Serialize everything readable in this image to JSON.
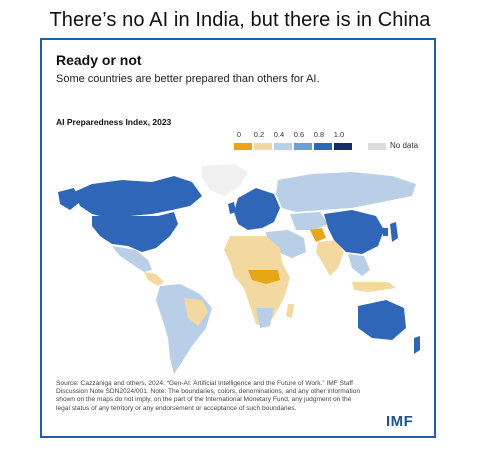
{
  "headline": "There’s no AI in India, but there is in China",
  "card": {
    "title": "Ready or not",
    "subtitle": "Some countries are better prepared than others for AI.",
    "chart_title": "AI Preparedness Index, 2023",
    "source": "Source: Cazzaniga and others, 2024. “Gen-AI: Artificial Intelligence and the Future of Work.” IMF Staff Discussion Note SDN2024/001. Note: The boundaries, colors, denominations, and any other information shown on the maps do not imply, on the part of the International Monetary Fund, any judgment on the legal status of any territory or any endorsement or acceptance of such boundaries.",
    "logo": "IMF"
  },
  "legend": {
    "ticks": [
      "0",
      "0.2",
      "0.4",
      "0.6",
      "0.8",
      "1.0"
    ],
    "colors": [
      "#e6a615",
      "#f3d9a0",
      "#b9cfe7",
      "#6f9fd6",
      "#2f66b8",
      "#152e6b"
    ],
    "no_data_label": "No data",
    "no_data_color": "#dcdcdc"
  },
  "colors": {
    "border": "#1f5fa8",
    "logo": "#1f4f92",
    "greenland": "#f0f0f0"
  },
  "chart_data": {
    "type": "choropleth",
    "title": "AI Preparedness Index, 2023",
    "scale": {
      "min": 0,
      "max": 1.0,
      "bins": [
        0,
        0.2,
        0.4,
        0.6,
        0.8,
        1.0
      ]
    },
    "regions": [
      {
        "name": "Canada",
        "bin": "0.6-0.8"
      },
      {
        "name": "United States",
        "bin": "0.6-0.8"
      },
      {
        "name": "Greenland",
        "bin": "no data"
      },
      {
        "name": "Mexico",
        "bin": "0.4-0.6"
      },
      {
        "name": "Central America",
        "bin": "0.2-0.4"
      },
      {
        "name": "South America",
        "bin": "0.4-0.6"
      },
      {
        "name": "Western Europe",
        "bin": "0.6-0.8"
      },
      {
        "name": "Russia",
        "bin": "0.4-0.6"
      },
      {
        "name": "North Africa",
        "bin": "0.2-0.4"
      },
      {
        "name": "Sub-Saharan Africa",
        "bin": "0.2-0.4"
      },
      {
        "name": "Central Africa",
        "bin": "0-0.2"
      },
      {
        "name": "Middle East",
        "bin": "0.4-0.6"
      },
      {
        "name": "Afghanistan",
        "bin": "0-0.2"
      },
      {
        "name": "India",
        "bin": "0.2-0.4"
      },
      {
        "name": "China",
        "bin": "0.6-0.8"
      },
      {
        "name": "Japan",
        "bin": "0.6-0.8"
      },
      {
        "name": "Southeast Asia",
        "bin": "0.4-0.6"
      },
      {
        "name": "Australia",
        "bin": "0.6-0.8"
      },
      {
        "name": "New Zealand",
        "bin": "0.6-0.8"
      }
    ]
  }
}
